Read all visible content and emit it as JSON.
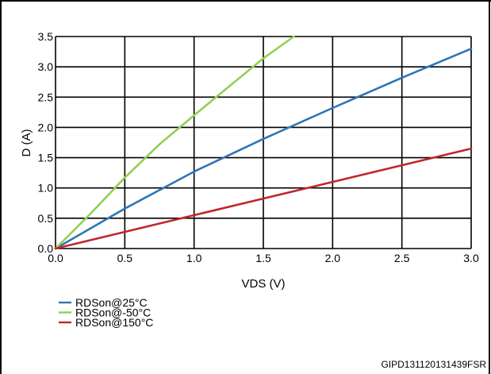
{
  "chart_data": {
    "type": "line",
    "xlabel": "VDS (V)",
    "ylabel": "D (A)",
    "xlim": [
      0.0,
      3.0
    ],
    "ylim": [
      0.0,
      3.5
    ],
    "x_ticks": [
      "0.0",
      "0.5",
      "1.0",
      "1.5",
      "2.0",
      "2.5",
      "3.0"
    ],
    "y_ticks": [
      "0.0",
      "0.5",
      "1.0",
      "1.5",
      "2.0",
      "2.5",
      "3.0",
      "3.5"
    ],
    "grid": true,
    "legend_position": "bottom-left",
    "series": [
      {
        "name": "RDSon@25°C",
        "color": "#2e75b6",
        "x": [
          0.0,
          0.5,
          1.0,
          1.5,
          2.0,
          2.5,
          3.0
        ],
        "y": [
          0.0,
          0.66,
          1.27,
          1.81,
          2.32,
          2.82,
          3.3
        ]
      },
      {
        "name": "RDSon@-50°C",
        "color": "#92d050",
        "x": [
          0.0,
          0.25,
          0.5,
          0.75,
          1.0,
          1.25,
          1.5,
          1.72
        ],
        "y": [
          0.0,
          0.57,
          1.17,
          1.72,
          2.2,
          2.67,
          3.14,
          3.5
        ]
      },
      {
        "name": "RDSon@150°C",
        "color": "#c0262d",
        "x": [
          0.0,
          1.0,
          2.0,
          3.0
        ],
        "y": [
          0.0,
          0.55,
          1.1,
          1.65
        ]
      }
    ]
  },
  "figure_code": "GIPD131120131439FSR"
}
